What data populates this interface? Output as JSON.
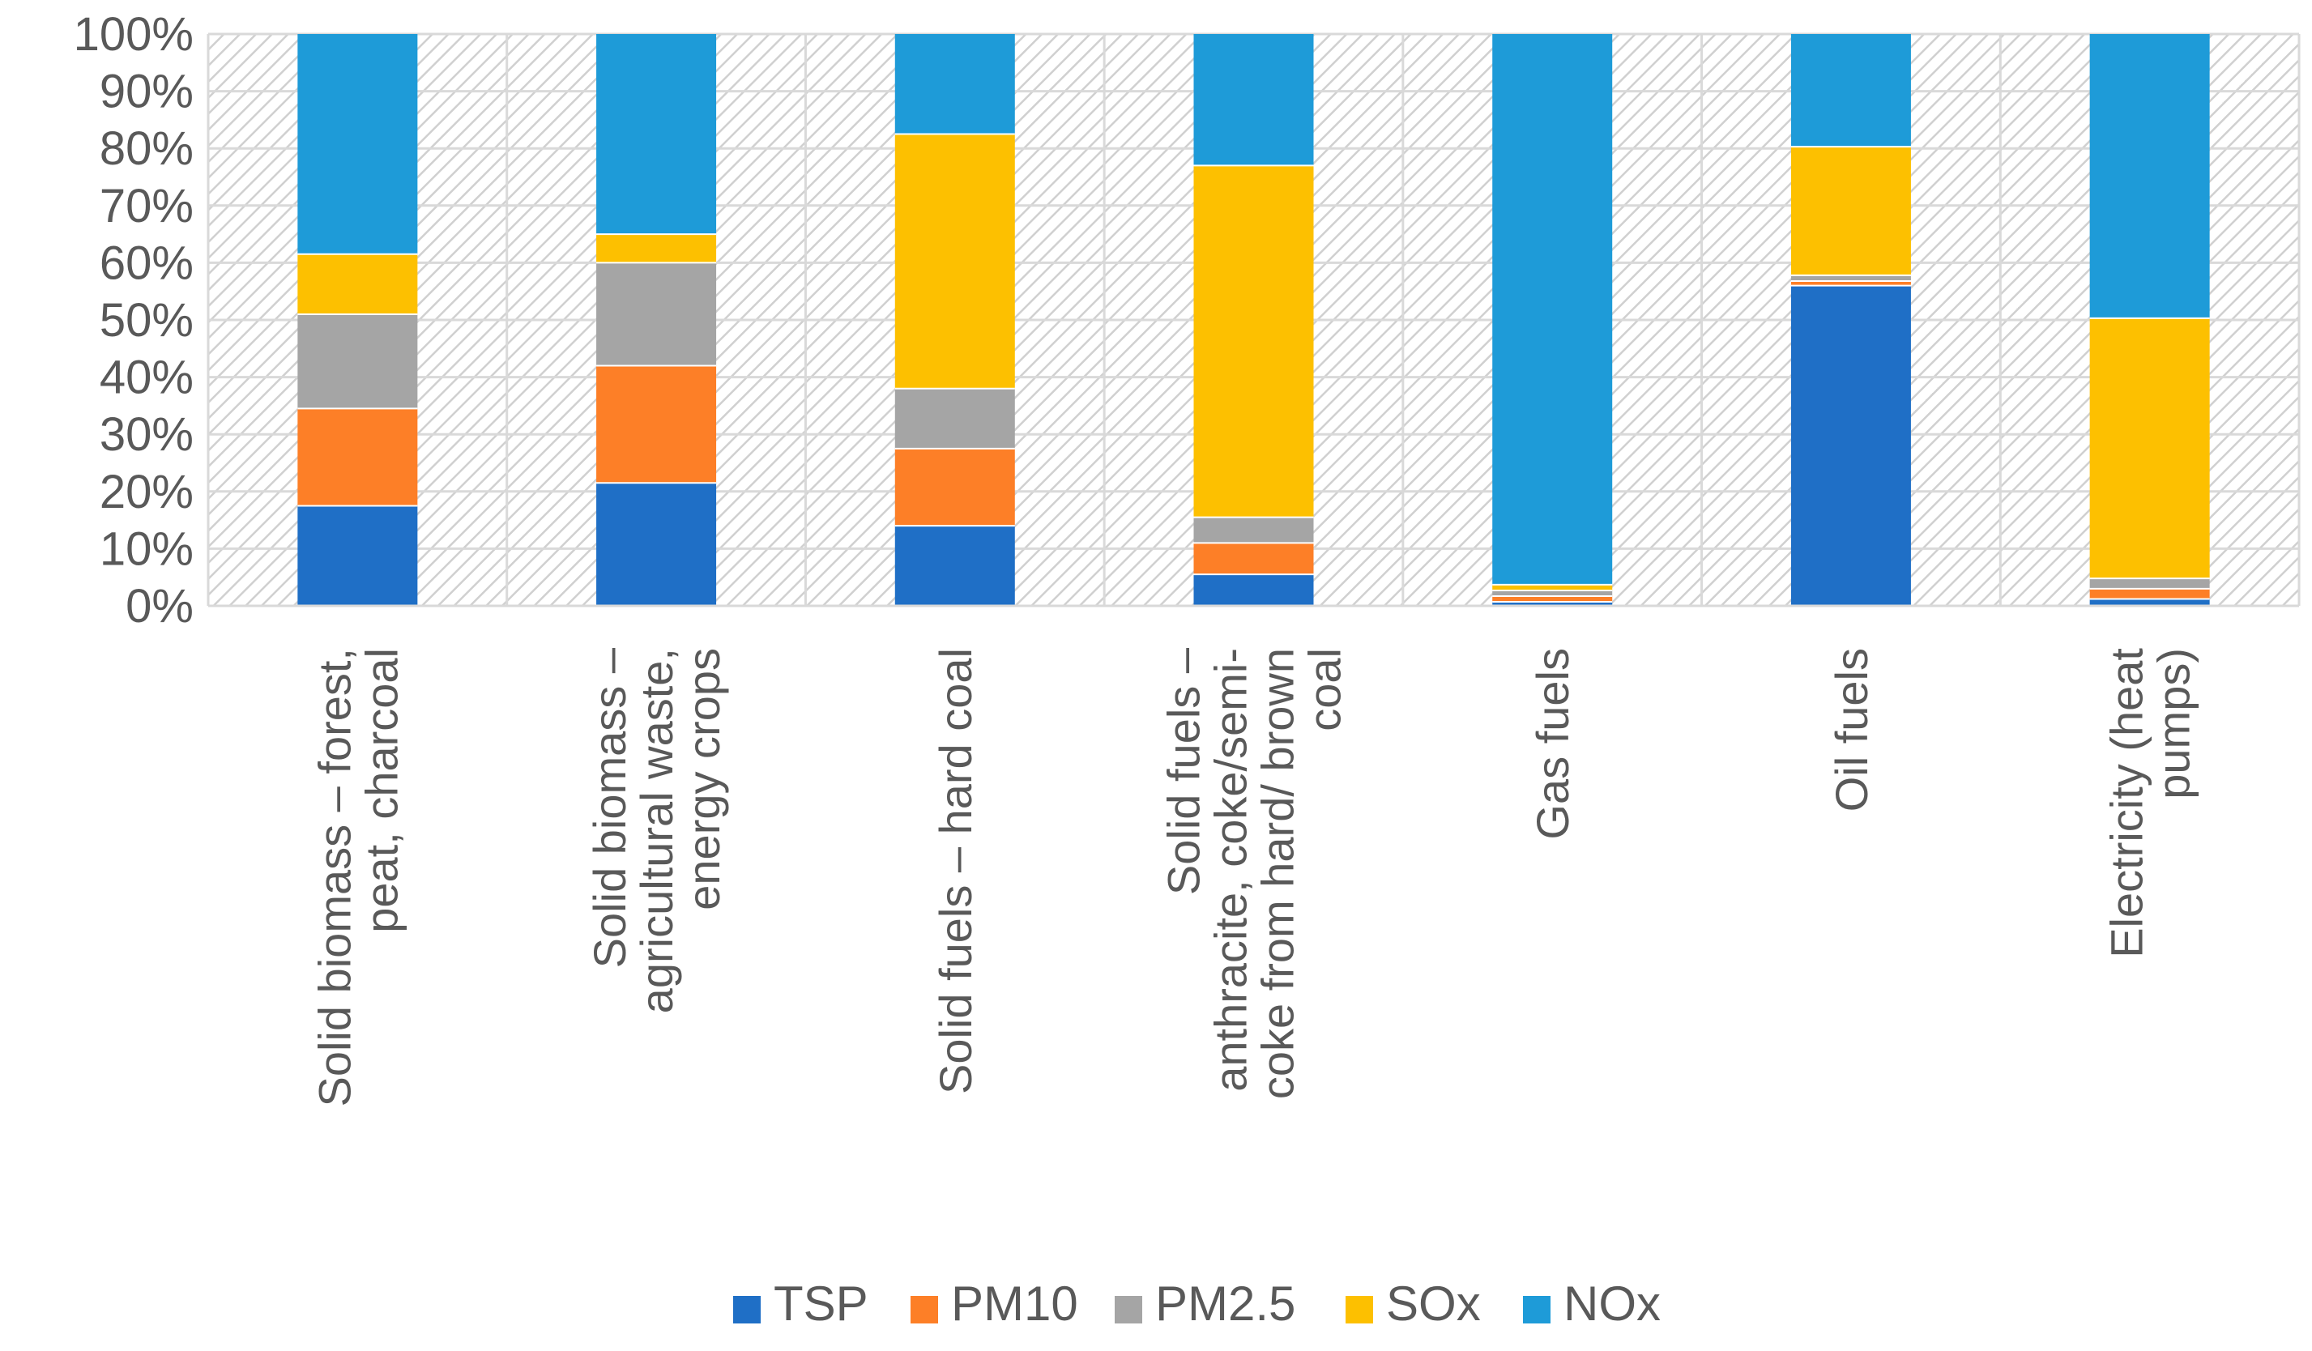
{
  "chart_data": {
    "type": "bar",
    "stacked": true,
    "percent_stacked": true,
    "title": "",
    "xlabel": "",
    "ylabel": "",
    "ylim": [
      0,
      100
    ],
    "y_ticks": [
      "0%",
      "10%",
      "20%",
      "30%",
      "40%",
      "50%",
      "60%",
      "70%",
      "80%",
      "90%",
      "100%"
    ],
    "grid": true,
    "legend_position": "bottom",
    "categories": [
      [
        "Solid biomass – forest,",
        "peat, charcoal"
      ],
      [
        "Solid biomass –",
        "agricultural waste,",
        "energy crops"
      ],
      [
        "Solid fuels – hard coal"
      ],
      [
        "Solid fuels –",
        "anthracite, coke/semi-",
        "coke from hard/ brown",
        "coal"
      ],
      [
        "Gas fuels"
      ],
      [
        "Oil fuels"
      ],
      [
        "Electricity (heat",
        "pumps)"
      ]
    ],
    "series": [
      {
        "name": "TSP",
        "color": "#1f6fc6",
        "values": [
          17.5,
          21.5,
          14,
          5.5,
          0.7,
          56,
          1.2
        ]
      },
      {
        "name": "PM10",
        "color": "#fd7f27",
        "values": [
          17,
          20.5,
          13.5,
          5.5,
          1.0,
          0.8,
          1.8
        ]
      },
      {
        "name": "PM2.5",
        "color": "#a5a5a5",
        "values": [
          16.5,
          18,
          10.5,
          4.5,
          1.0,
          1.0,
          1.8
        ]
      },
      {
        "name": "SOx",
        "color": "#fdc000",
        "values": [
          10.5,
          5,
          44.5,
          61.5,
          1.0,
          22.5,
          45.5
        ]
      },
      {
        "name": "NOx",
        "color": "#1e9bd8",
        "values": [
          38.5,
          35,
          17.5,
          23,
          96.3,
          19.7,
          49.7
        ]
      }
    ]
  }
}
